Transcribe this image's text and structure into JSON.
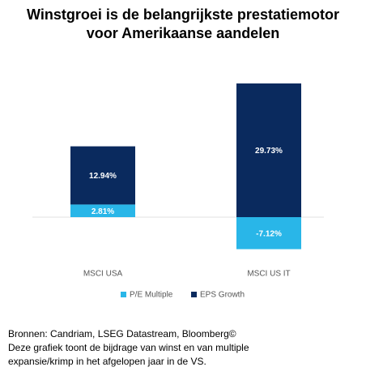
{
  "chart_data": {
    "type": "stacked_bar",
    "title": [
      "Winstgroei is de belangrijkste prestatiemotor",
      "voor Amerikaanse aandelen"
    ],
    "categories": [
      "MSCI USA",
      "MSCI US IT"
    ],
    "series": [
      {
        "name": "P/E Multiple",
        "color": "#29b6e8",
        "values": [
          2.81,
          -7.12
        ],
        "value_labels": [
          "2.81%",
          "-7.12%"
        ]
      },
      {
        "name": "EPS Growth",
        "color": "#0a2a5e",
        "values": [
          12.94,
          29.73
        ],
        "value_labels": [
          "12.94%",
          "29.73%"
        ]
      }
    ],
    "notes": [
      "Bronnen: Candriam, LSEG Datastream, Bloomberg©",
      "Deze grafiek toont de bijdrage van winst en van multiple",
      "expansie/krimp in het afgelopen jaar in de VS."
    ]
  }
}
